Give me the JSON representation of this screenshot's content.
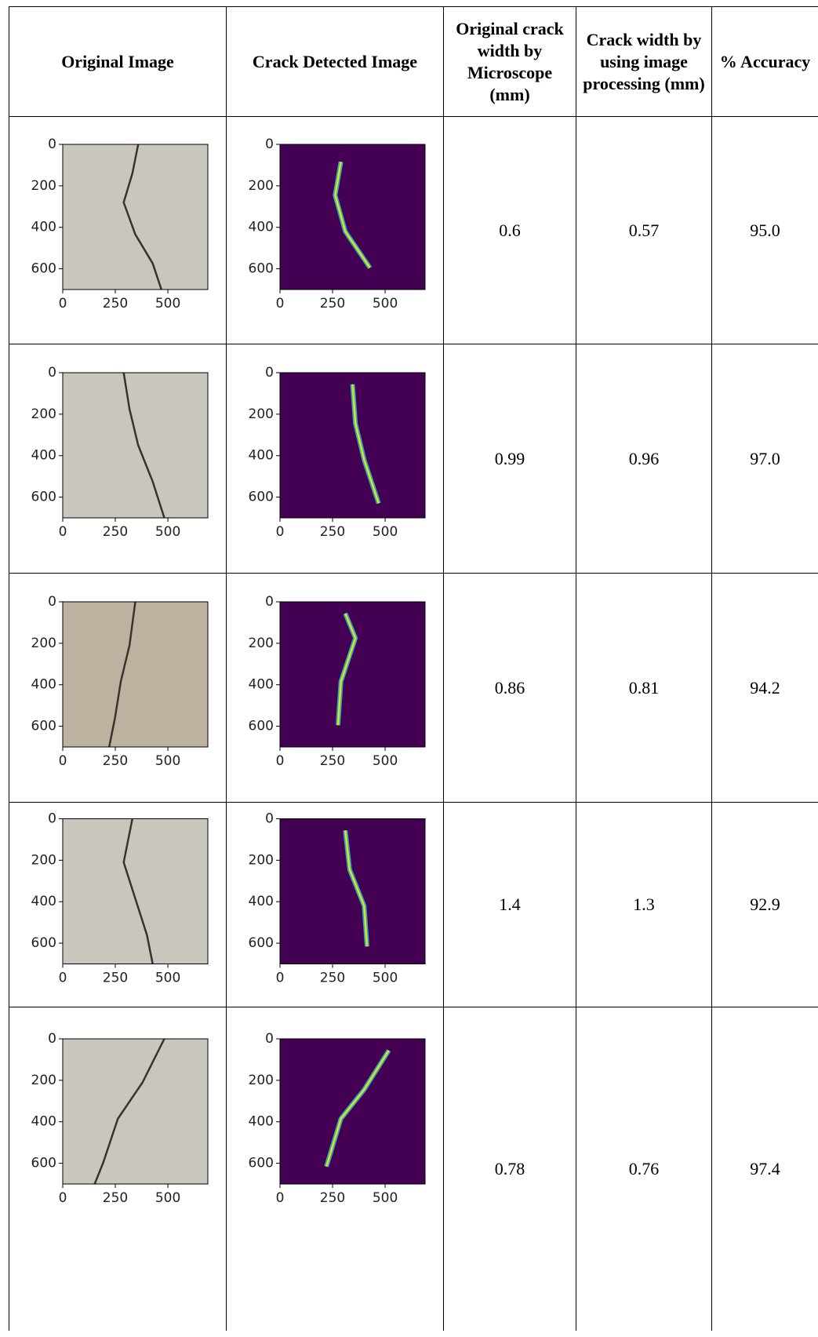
{
  "table": {
    "header": [
      "Original Image",
      "Crack Detected Image",
      "Original crack width by Microscope (mm)",
      "Crack width by using image processing (mm)",
      "% Accuracy"
    ],
    "rows": [
      {
        "original_image": {
          "yticks": [
            0,
            200,
            400,
            600
          ],
          "xticks": [
            0,
            250,
            500
          ]
        },
        "detected_image": {
          "yticks": [
            0,
            200,
            400,
            600
          ],
          "xticks": [
            0,
            250,
            500
          ]
        },
        "microscope": "0.6",
        "processing": "0.57",
        "accuracy": "95.0"
      },
      {
        "original_image": {
          "yticks": [
            0,
            200,
            400,
            600
          ],
          "xticks": [
            0,
            250,
            500
          ]
        },
        "detected_image": {
          "yticks": [
            0,
            200,
            400,
            600
          ],
          "xticks": [
            0,
            250,
            500
          ]
        },
        "microscope": "0.99",
        "processing": "0.96",
        "accuracy": "97.0"
      },
      {
        "original_image": {
          "yticks": [
            0,
            200,
            400,
            600
          ],
          "xticks": [
            0,
            250,
            500
          ]
        },
        "detected_image": {
          "yticks": [
            0,
            200,
            400,
            600
          ],
          "xticks": [
            0,
            250,
            500
          ]
        },
        "microscope": "0.86",
        "processing": "0.81",
        "accuracy": "94.2"
      },
      {
        "original_image": {
          "yticks": [
            0,
            200,
            400,
            600
          ],
          "xticks": [
            0,
            250,
            500
          ]
        },
        "detected_image": {
          "yticks": [
            0,
            200,
            400,
            600
          ],
          "xticks": [
            0,
            250,
            500
          ]
        },
        "microscope": "1.4",
        "processing": "1.3",
        "accuracy": "92.9"
      },
      {
        "original_image": {
          "yticks": [
            0,
            200,
            400,
            600
          ],
          "xticks": [
            0,
            250,
            500
          ]
        },
        "detected_image": {
          "yticks": [
            0,
            200,
            400,
            600
          ],
          "xticks": [
            0,
            250,
            500
          ]
        },
        "microscope": "0.78",
        "processing": "0.76",
        "accuracy": "97.4"
      }
    ]
  }
}
